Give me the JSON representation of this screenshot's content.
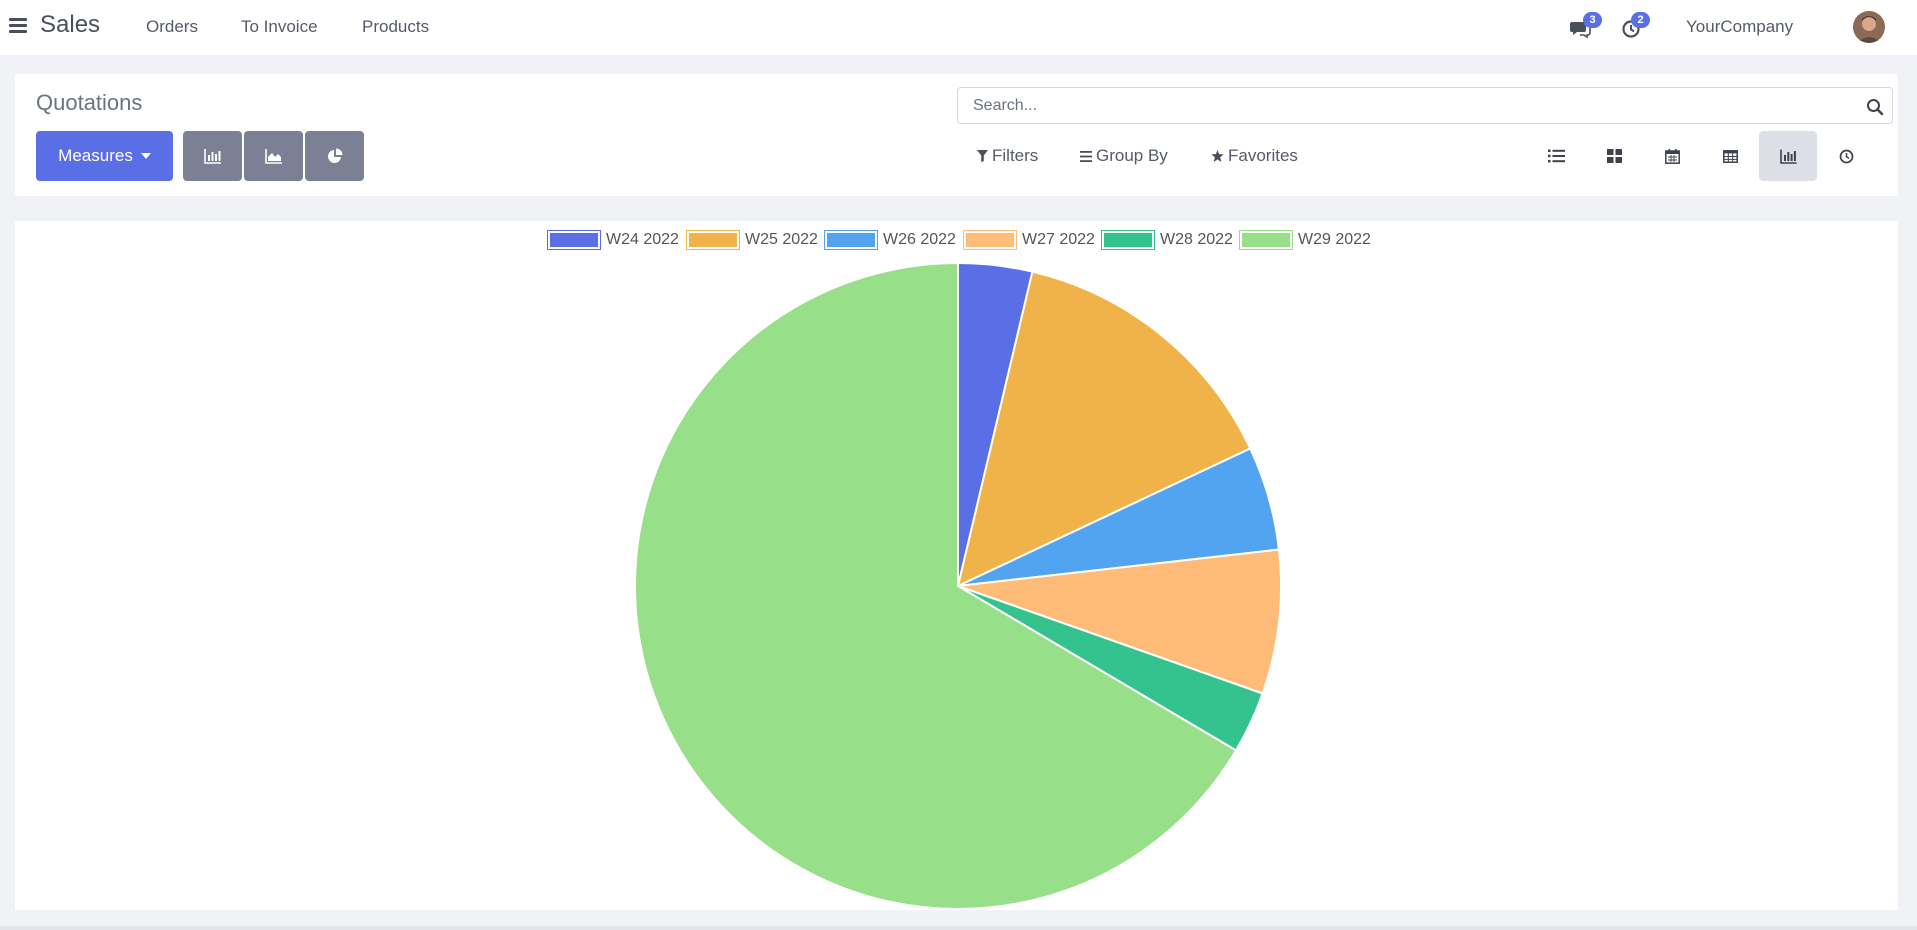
{
  "navbar": {
    "app_name": "Sales",
    "links": [
      "Orders",
      "To Invoice",
      "Products"
    ],
    "messages_count": "3",
    "activities_count": "2",
    "company": "YourCompany"
  },
  "control_panel": {
    "breadcrumb": "Quotations",
    "measures_label": "Measures",
    "search_placeholder": "Search...",
    "filters_label": "Filters",
    "group_by_label": "Group By",
    "favorites_label": "Favorites",
    "active_view": "graph"
  },
  "chart_data": {
    "type": "pie",
    "categories": [
      "W24 2022",
      "W25 2022",
      "W26 2022",
      "W27 2022",
      "W28 2022",
      "W29 2022"
    ],
    "values": [
      3.7,
      14.3,
      5.2,
      7.2,
      3.1,
      66.5
    ],
    "colors": [
      "#5a6ee6",
      "#f0b34a",
      "#52a4f0",
      "#ffbb78",
      "#34c38f",
      "#98df8a"
    ],
    "legend_position": "top"
  }
}
